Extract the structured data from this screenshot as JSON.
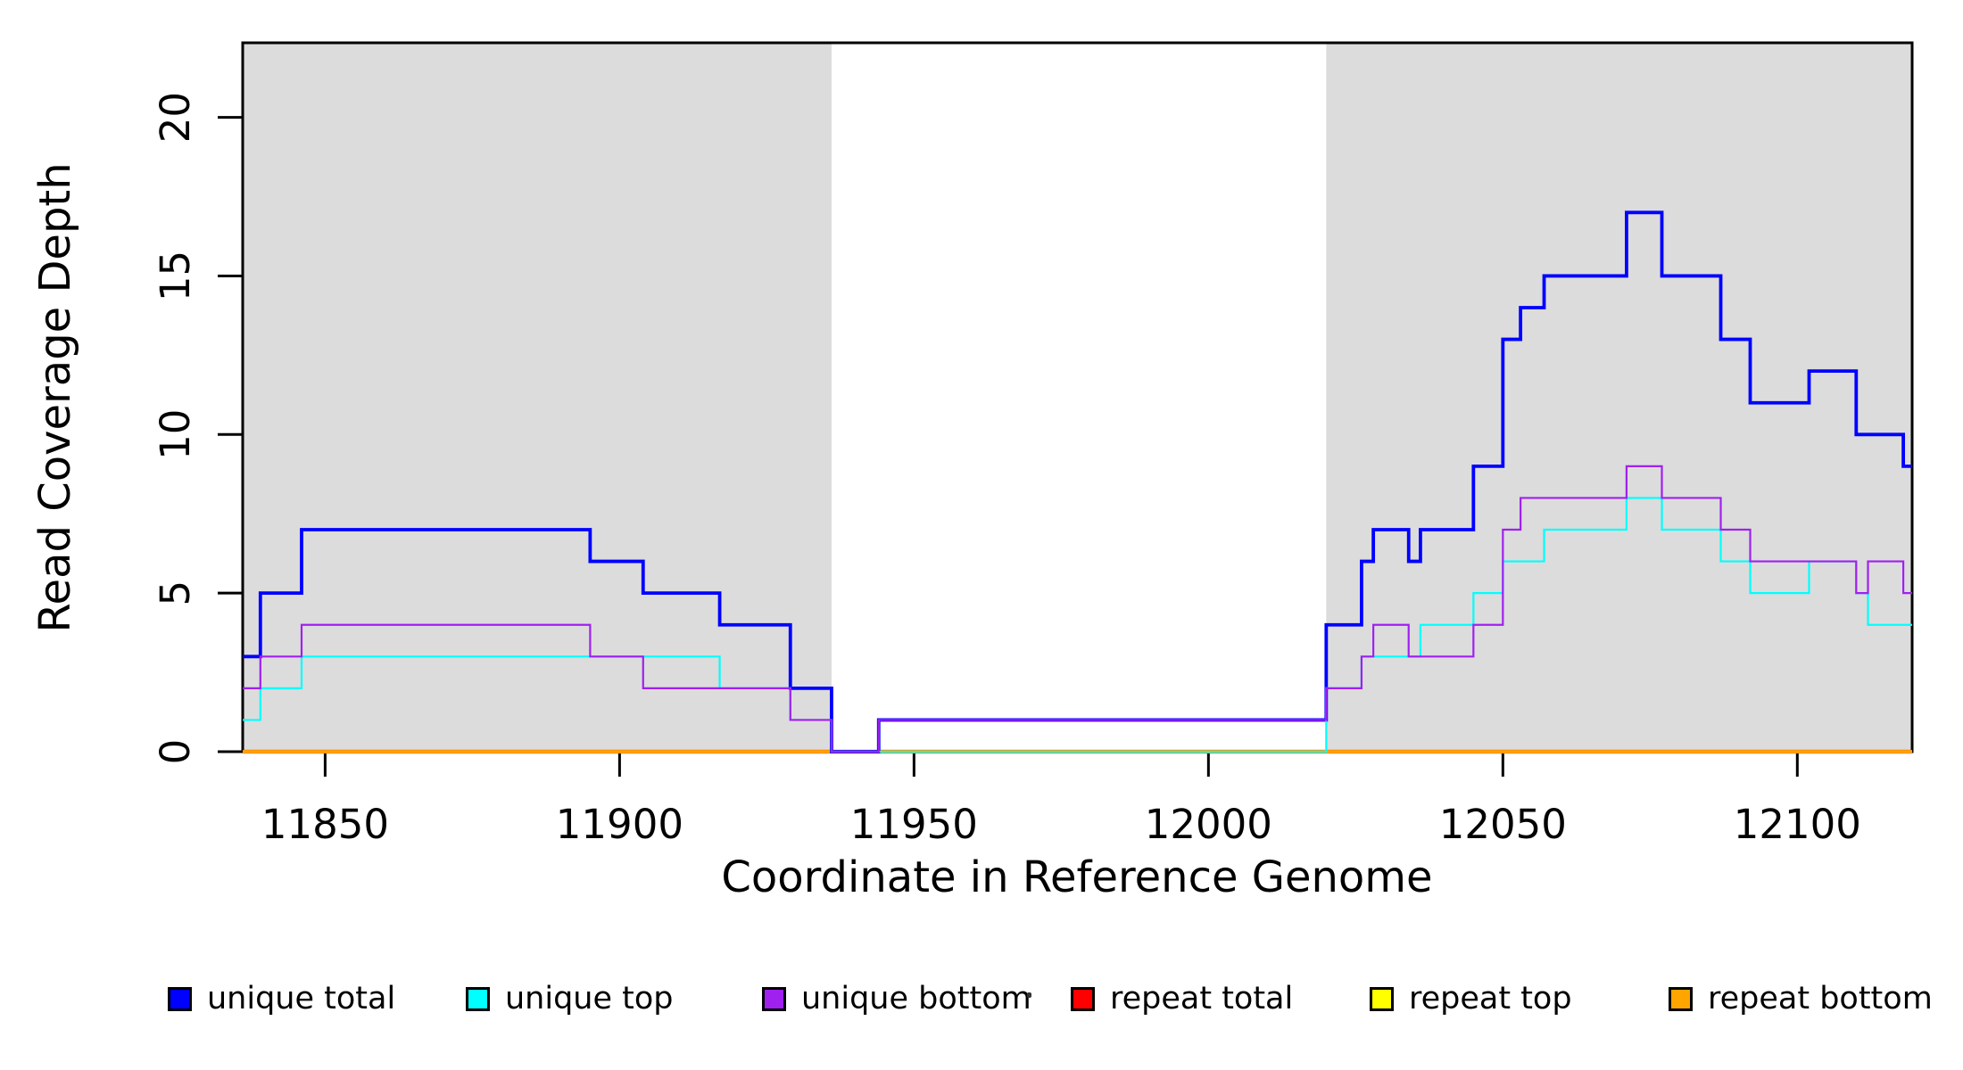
{
  "chart_data": {
    "type": "line",
    "subtype": "step",
    "title": "",
    "xlabel": "Coordinate in Reference Genome",
    "ylabel": "Read Coverage Depth",
    "xlim": [
      11836,
      12119.5
    ],
    "ylim": [
      0,
      22.35
    ],
    "x_ticks": [
      11850,
      11900,
      11950,
      12000,
      12050,
      12100
    ],
    "y_ticks": [
      0,
      5,
      10,
      15,
      20
    ],
    "grid": false,
    "plot_background": "#ffffff",
    "shaded_regions": [
      {
        "name": "repeat-region-left",
        "x0": 11836,
        "x1": 11936,
        "color": "#DCDCDC"
      },
      {
        "name": "repeat-region-right",
        "x0": 12020,
        "x1": 12119.5,
        "color": "#DCDCDC"
      }
    ],
    "step_breaks": [
      11836,
      11839,
      11846,
      11895,
      11904,
      11917,
      11929,
      11936,
      11944,
      12020,
      12026,
      12028,
      12034,
      12036,
      12045,
      12050,
      12053,
      12057,
      12071,
      12077,
      12087,
      12092,
      12102,
      12110,
      12112,
      12118,
      12119.5
    ],
    "series": [
      {
        "name": "repeat total",
        "color": "#FF0000",
        "linewidth": 4.2,
        "values": [
          0,
          0,
          0,
          0,
          0,
          0,
          0,
          0,
          0,
          0,
          0,
          0,
          0,
          0,
          0,
          0,
          0,
          0,
          0,
          0,
          0,
          0,
          0,
          0,
          0,
          0
        ]
      },
      {
        "name": "repeat top",
        "color": "#FFFF00",
        "linewidth": 3.4,
        "values": [
          0,
          0,
          0,
          0,
          0,
          0,
          0,
          0,
          0,
          0,
          0,
          0,
          0,
          0,
          0,
          0,
          0,
          0,
          0,
          0,
          0,
          0,
          0,
          0,
          0,
          0
        ]
      },
      {
        "name": "repeat bottom",
        "color": "#FFA500",
        "linewidth": 3.0,
        "values": [
          0,
          0,
          0,
          0,
          0,
          0,
          0,
          0,
          0,
          0,
          0,
          0,
          0,
          0,
          0,
          0,
          0,
          0,
          0,
          0,
          0,
          0,
          0,
          0,
          0,
          0
        ]
      },
      {
        "name": "unique total",
        "color": "#0000FF",
        "linewidth": 3.8,
        "values": [
          3,
          5,
          7,
          6,
          5,
          4,
          2,
          0,
          1,
          4,
          6,
          7,
          6,
          7,
          9,
          13,
          14,
          15,
          17,
          15,
          13,
          11,
          12,
          10,
          10,
          9
        ]
      },
      {
        "name": "unique top",
        "color": "#00FFFF",
        "linewidth": 2.2,
        "values": [
          1,
          2,
          3,
          3,
          3,
          2,
          1,
          0,
          0,
          2,
          3,
          3,
          3,
          4,
          5,
          6,
          6,
          7,
          8,
          7,
          6,
          5,
          6,
          5,
          4,
          4
        ]
      },
      {
        "name": "unique bottom",
        "color": "#A020F0",
        "linewidth": 2.2,
        "values": [
          2,
          3,
          4,
          3,
          2,
          2,
          1,
          0,
          1,
          2,
          3,
          4,
          3,
          3,
          4,
          7,
          8,
          8,
          9,
          8,
          7,
          6,
          6,
          5,
          6,
          5
        ]
      }
    ],
    "legend_position": "bottom",
    "legend": [
      {
        "label": "unique total",
        "color": "#0000FF"
      },
      {
        "label": "unique top",
        "color": "#00FFFF"
      },
      {
        "label": "unique bottom",
        "color": "#A020F0"
      },
      {
        "label": "repeat total",
        "color": "#FF0000"
      },
      {
        "label": "repeat top",
        "color": "#FFFF00"
      },
      {
        "label": "repeat bottom",
        "color": "#FFA500"
      }
    ]
  },
  "layout": {
    "legend_left_positions": [
      188,
      522,
      854,
      1200,
      1535,
      1870
    ]
  }
}
